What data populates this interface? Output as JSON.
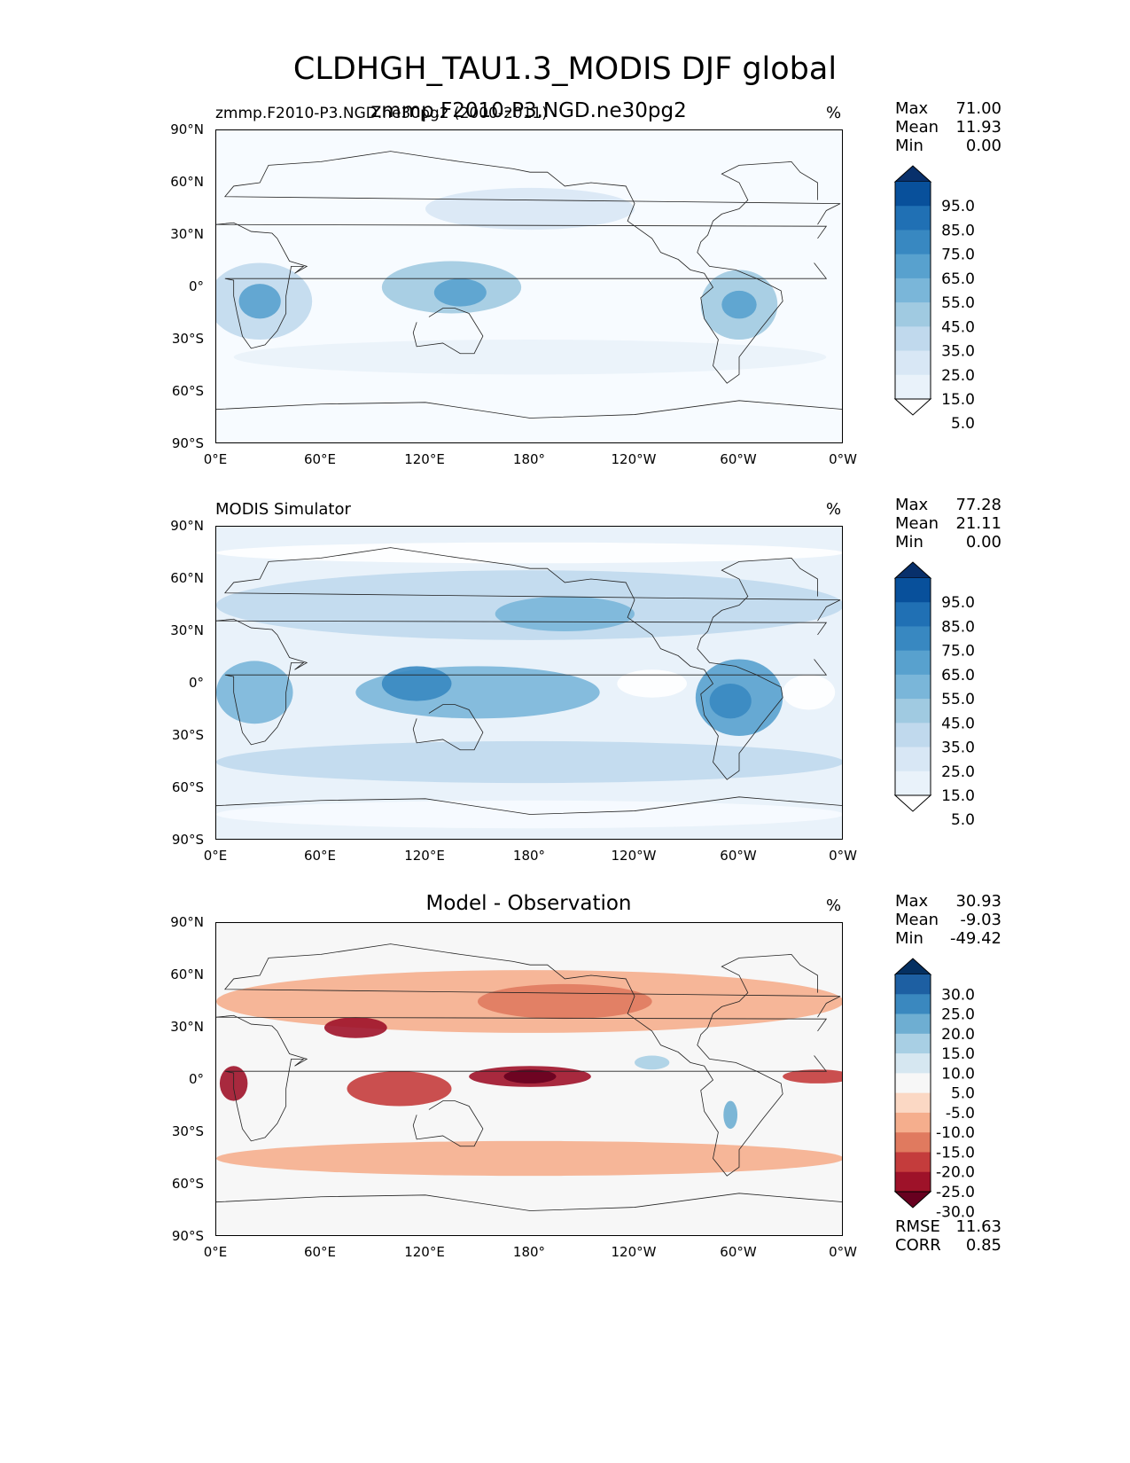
{
  "title": "CLDHGH_TAU1.3_MODIS DJF global",
  "panels": [
    {
      "id": "test",
      "title_left": "zmmp.F2010-P3.NGD.ne30pg2 (2000-2011)",
      "title_center": "zmmp.F2010-P3.NGD.ne30pg2",
      "unit": "%",
      "stats": {
        "max_label": "Max",
        "max": "71.00",
        "mean_label": "Mean",
        "mean": "11.93",
        "min_label": "Min",
        "min": "0.00"
      },
      "colorbar": {
        "labels": [
          "95.0",
          "85.0",
          "75.0",
          "65.0",
          "55.0",
          "45.0",
          "35.0",
          "25.0",
          "15.0",
          "5.0"
        ],
        "colors": [
          "#08306b",
          "#08509b",
          "#2070b4",
          "#3888c1",
          "#58a1ce",
          "#7ab6d9",
          "#a0cae1",
          "#c0d9ed",
          "#d8e7f5",
          "#e9f2fa",
          "#ffffff"
        ]
      },
      "fill": "#f7fbff",
      "blobs": [
        {
          "lon": 25,
          "lat": -8,
          "rx": 30,
          "ry": 22,
          "color": "#c0d9ed"
        },
        {
          "lon": 25,
          "lat": -8,
          "rx": 12,
          "ry": 10,
          "color": "#58a1ce"
        },
        {
          "lon": 135,
          "lat": 0,
          "rx": 40,
          "ry": 15,
          "color": "#a0cae1"
        },
        {
          "lon": 140,
          "lat": -3,
          "rx": 15,
          "ry": 8,
          "color": "#58a1ce"
        },
        {
          "lon": 300,
          "lat": -10,
          "rx": 22,
          "ry": 20,
          "color": "#a0cae1"
        },
        {
          "lon": 300,
          "lat": -10,
          "rx": 10,
          "ry": 8,
          "color": "#58a1ce"
        },
        {
          "lon": 180,
          "lat": 45,
          "rx": 60,
          "ry": 12,
          "color": "#d8e7f5"
        },
        {
          "lon": 180,
          "lat": -40,
          "rx": 170,
          "ry": 10,
          "color": "#e9f2fa"
        }
      ]
    },
    {
      "id": "reference",
      "title_left": "MODIS Simulator",
      "title_center": "",
      "unit": "%",
      "stats": {
        "max_label": "Max",
        "max": "77.28",
        "mean_label": "Mean",
        "mean": "21.11",
        "min_label": "Min",
        "min": "0.00"
      },
      "colorbar": {
        "labels": [
          "95.0",
          "85.0",
          "75.0",
          "65.0",
          "55.0",
          "45.0",
          "35.0",
          "25.0",
          "15.0",
          "5.0"
        ],
        "colors": [
          "#08306b",
          "#08509b",
          "#2070b4",
          "#3888c1",
          "#58a1ce",
          "#7ab6d9",
          "#a0cae1",
          "#c0d9ed",
          "#d8e7f5",
          "#e9f2fa",
          "#ffffff"
        ]
      },
      "fill": "#e9f2fa",
      "blobs": [
        {
          "lon": 180,
          "lat": 45,
          "rx": 180,
          "ry": 20,
          "color": "#c0d9ed"
        },
        {
          "lon": 200,
          "lat": 40,
          "rx": 40,
          "ry": 10,
          "color": "#7ab6d9"
        },
        {
          "lon": 180,
          "lat": -45,
          "rx": 180,
          "ry": 12,
          "color": "#c0d9ed"
        },
        {
          "lon": 150,
          "lat": -5,
          "rx": 70,
          "ry": 15,
          "color": "#7ab6d9"
        },
        {
          "lon": 115,
          "lat": 0,
          "rx": 20,
          "ry": 10,
          "color": "#3888c1"
        },
        {
          "lon": 22,
          "lat": -5,
          "rx": 22,
          "ry": 18,
          "color": "#7ab6d9"
        },
        {
          "lon": 300,
          "lat": -8,
          "rx": 25,
          "ry": 22,
          "color": "#58a1ce"
        },
        {
          "lon": 295,
          "lat": -10,
          "rx": 12,
          "ry": 10,
          "color": "#3888c1"
        },
        {
          "lon": 250,
          "lat": 0,
          "rx": 20,
          "ry": 8,
          "color": "#ffffff"
        },
        {
          "lon": 340,
          "lat": -5,
          "rx": 15,
          "ry": 10,
          "color": "#ffffff"
        },
        {
          "lon": 180,
          "lat": 75,
          "rx": 180,
          "ry": 6,
          "color": "#ffffff"
        },
        {
          "lon": 180,
          "lat": -75,
          "rx": 180,
          "ry": 8,
          "color": "#f7fbff"
        }
      ]
    },
    {
      "id": "diff",
      "title_left": "",
      "title_center": "Model - Observation",
      "unit": "%",
      "stats": {
        "max_label": "Max",
        "max": "30.93",
        "mean_label": "Mean",
        "mean": "-9.03",
        "min_label": "Min",
        "min": "-49.42"
      },
      "colorbar": {
        "labels": [
          "30.0",
          "25.0",
          "20.0",
          "15.0",
          "10.0",
          "5.0",
          "-5.0",
          "-10.0",
          "-15.0",
          "-20.0",
          "-25.0",
          "-30.0"
        ],
        "colors": [
          "#053061",
          "#1d5fa2",
          "#3a88bf",
          "#6eaed2",
          "#a8cfe4",
          "#d6e7f1",
          "#f7f7f7",
          "#fbd8c4",
          "#f5ae8d",
          "#e07a5f",
          "#c43c3c",
          "#9e1229",
          "#67001f"
        ]
      },
      "fill": "#f7f7f7",
      "blobs": [
        {
          "lon": 180,
          "lat": 45,
          "rx": 180,
          "ry": 18,
          "color": "#f5ae8d"
        },
        {
          "lon": 200,
          "lat": 45,
          "rx": 50,
          "ry": 10,
          "color": "#e07a5f"
        },
        {
          "lon": 80,
          "lat": 30,
          "rx": 18,
          "ry": 6,
          "color": "#9e1229"
        },
        {
          "lon": 180,
          "lat": -45,
          "rx": 180,
          "ry": 10,
          "color": "#f5ae8d"
        },
        {
          "lon": 180,
          "lat": 2,
          "rx": 35,
          "ry": 6,
          "color": "#9e1229"
        },
        {
          "lon": 180,
          "lat": 2,
          "rx": 15,
          "ry": 4,
          "color": "#67001f"
        },
        {
          "lon": 105,
          "lat": -5,
          "rx": 30,
          "ry": 10,
          "color": "#c43c3c"
        },
        {
          "lon": 10,
          "lat": -2,
          "rx": 8,
          "ry": 10,
          "color": "#9e1229"
        },
        {
          "lon": 345,
          "lat": 2,
          "rx": 20,
          "ry": 4,
          "color": "#c43c3c"
        },
        {
          "lon": 295,
          "lat": -20,
          "rx": 4,
          "ry": 8,
          "color": "#6eaed2"
        },
        {
          "lon": 250,
          "lat": 10,
          "rx": 10,
          "ry": 4,
          "color": "#a8cfe4"
        }
      ]
    }
  ],
  "axis": {
    "lat_ticks": [
      "90°N",
      "60°N",
      "30°N",
      "0°",
      "30°S",
      "60°S",
      "90°S"
    ],
    "lon_ticks": [
      "0°E",
      "60°E",
      "120°E",
      "180°",
      "120°W",
      "60°W",
      "0°W"
    ]
  },
  "diff_metrics": {
    "rmse_label": "RMSE",
    "rmse": "11.63",
    "corr_label": "CORR",
    "corr": "0.85"
  }
}
